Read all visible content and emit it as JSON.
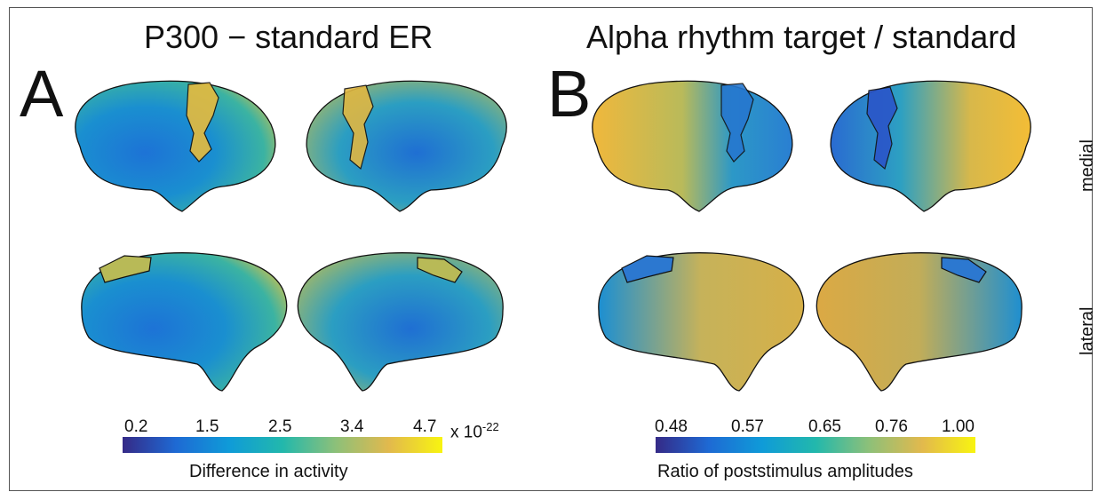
{
  "panels": {
    "a": {
      "letter": "A",
      "title": "P300 − standard ER",
      "ticks": [
        "0.2",
        "1.5",
        "2.5",
        "3.4",
        "4.7"
      ],
      "scale_prefix": "x 10",
      "scale_exponent": "-22",
      "colorbar_label": "Difference in activity"
    },
    "b": {
      "letter": "B",
      "title": "Alpha rhythm target / standard",
      "ticks": [
        "0.48",
        "0.57",
        "0.65",
        "0.76",
        "1.00"
      ],
      "colorbar_label": "Ratio of poststimulus amplitudes"
    }
  },
  "row_labels": {
    "medial": "medial",
    "lateral": "lateral"
  },
  "colors": {
    "colormap": [
      "#352a87",
      "#1e6ad4",
      "#0f9bd8",
      "#22b8ac",
      "#8dc079",
      "#e2b94d",
      "#f8f410"
    ],
    "outline": "#111111"
  }
}
